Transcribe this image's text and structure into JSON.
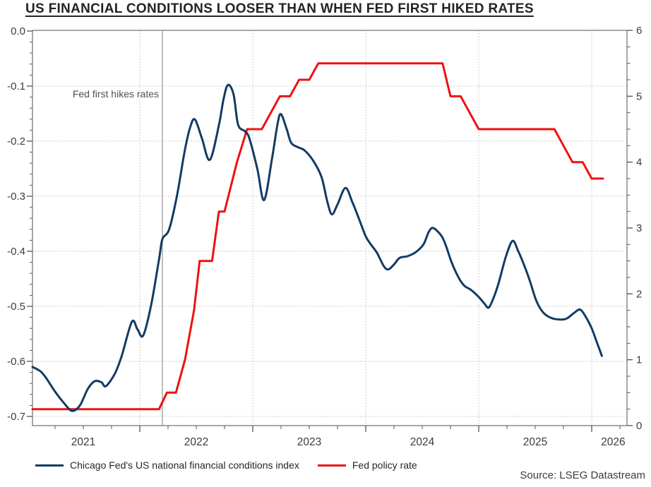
{
  "chart_data": {
    "type": "line",
    "title": "US FINANCIAL CONDITIONS LOOSER THAN WHEN FED FIRST HIKED RATES",
    "source": "Source: LSEG Datastream",
    "annotation": {
      "text": "Fed first hikes rates",
      "t": 2022.2
    },
    "x_axis": {
      "start": 2021.05,
      "end": 2026.31,
      "year_boundary_ticks": [
        2022,
        2023,
        2024,
        2025,
        2026
      ],
      "minor_tick_interval_years": 0.25,
      "labels": [
        {
          "text": "2021",
          "t": 2021.5
        },
        {
          "text": "2022",
          "t": 2022.5
        },
        {
          "text": "2023",
          "t": 2023.5
        },
        {
          "text": "2024",
          "t": 2024.5
        },
        {
          "text": "2025",
          "t": 2025.5
        },
        {
          "text": "2026",
          "t": 2026.19
        }
      ]
    },
    "left_axis": {
      "min": -0.7,
      "max": 0.0,
      "major_step": 0.1,
      "minor_step": 0.02,
      "tick_labels": [
        "0.0",
        "-0.1",
        "-0.2",
        "-0.3",
        "-0.4",
        "-0.5",
        "-0.6",
        "-0.7"
      ],
      "tick_values": [
        0,
        -0.1,
        -0.2,
        -0.3,
        -0.4,
        -0.5,
        -0.6,
        -0.7
      ],
      "gridlines": [
        -0.1,
        -0.2,
        -0.3,
        -0.4,
        -0.5,
        -0.6,
        -0.7
      ]
    },
    "right_axis": {
      "min": 0,
      "max": 6,
      "major_step": 1,
      "minor_step": 0.25,
      "tick_labels": [
        "0",
        "1",
        "2",
        "3",
        "4",
        "5",
        "6"
      ],
      "tick_values": [
        0,
        1,
        2,
        3,
        4,
        5,
        6
      ]
    },
    "grid": {
      "horizontal": true,
      "vertical_at_year_boundaries": true,
      "style": "dotted"
    },
    "colors": {
      "nfci": "#133b63",
      "fed_rate": "#ee1111",
      "grid": "#bdbdbd",
      "axis": "#6e6e6e",
      "tick": "#555555",
      "tick_label": "#3c3c3c",
      "annotation_line": "#9b9b9b",
      "annotation_text": "#4f4f4f"
    },
    "series": [
      {
        "name": "Chicago Fed's US national financial conditions index",
        "axis": "left",
        "color": "#133b63",
        "smooth": true,
        "points": [
          [
            2021.05,
            -0.61
          ],
          [
            2021.12,
            -0.618
          ],
          [
            2021.17,
            -0.63
          ],
          [
            2021.25,
            -0.655
          ],
          [
            2021.33,
            -0.676
          ],
          [
            2021.4,
            -0.69
          ],
          [
            2021.47,
            -0.68
          ],
          [
            2021.54,
            -0.65
          ],
          [
            2021.6,
            -0.636
          ],
          [
            2021.66,
            -0.638
          ],
          [
            2021.7,
            -0.645
          ],
          [
            2021.78,
            -0.622
          ],
          [
            2021.84,
            -0.59
          ],
          [
            2021.93,
            -0.528
          ],
          [
            2021.98,
            -0.542
          ],
          [
            2022.03,
            -0.553
          ],
          [
            2022.1,
            -0.498
          ],
          [
            2022.17,
            -0.415
          ],
          [
            2022.2,
            -0.378
          ],
          [
            2022.26,
            -0.36
          ],
          [
            2022.33,
            -0.298
          ],
          [
            2022.4,
            -0.215
          ],
          [
            2022.45,
            -0.172
          ],
          [
            2022.49,
            -0.161
          ],
          [
            2022.55,
            -0.195
          ],
          [
            2022.62,
            -0.234
          ],
          [
            2022.7,
            -0.171
          ],
          [
            2022.74,
            -0.125
          ],
          [
            2022.78,
            -0.098
          ],
          [
            2022.83,
            -0.115
          ],
          [
            2022.87,
            -0.17
          ],
          [
            2022.93,
            -0.182
          ],
          [
            2022.97,
            -0.195
          ],
          [
            2023.04,
            -0.25
          ],
          [
            2023.1,
            -0.307
          ],
          [
            2023.17,
            -0.232
          ],
          [
            2023.22,
            -0.168
          ],
          [
            2023.25,
            -0.151
          ],
          [
            2023.3,
            -0.178
          ],
          [
            2023.34,
            -0.203
          ],
          [
            2023.4,
            -0.211
          ],
          [
            2023.46,
            -0.217
          ],
          [
            2023.54,
            -0.237
          ],
          [
            2023.61,
            -0.266
          ],
          [
            2023.66,
            -0.31
          ],
          [
            2023.7,
            -0.333
          ],
          [
            2023.75,
            -0.315
          ],
          [
            2023.82,
            -0.285
          ],
          [
            2023.88,
            -0.31
          ],
          [
            2023.94,
            -0.341
          ],
          [
            2024.0,
            -0.373
          ],
          [
            2024.05,
            -0.389
          ],
          [
            2024.1,
            -0.403
          ],
          [
            2024.16,
            -0.427
          ],
          [
            2024.2,
            -0.433
          ],
          [
            2024.25,
            -0.424
          ],
          [
            2024.3,
            -0.412
          ],
          [
            2024.37,
            -0.409
          ],
          [
            2024.44,
            -0.402
          ],
          [
            2024.51,
            -0.388
          ],
          [
            2024.56,
            -0.364
          ],
          [
            2024.6,
            -0.358
          ],
          [
            2024.67,
            -0.372
          ],
          [
            2024.71,
            -0.39
          ],
          [
            2024.76,
            -0.42
          ],
          [
            2024.82,
            -0.447
          ],
          [
            2024.87,
            -0.462
          ],
          [
            2024.93,
            -0.47
          ],
          [
            2025.0,
            -0.483
          ],
          [
            2025.05,
            -0.495
          ],
          [
            2025.09,
            -0.502
          ],
          [
            2025.14,
            -0.48
          ],
          [
            2025.18,
            -0.455
          ],
          [
            2025.24,
            -0.41
          ],
          [
            2025.3,
            -0.381
          ],
          [
            2025.35,
            -0.4
          ],
          [
            2025.39,
            -0.419
          ],
          [
            2025.45,
            -0.452
          ],
          [
            2025.51,
            -0.49
          ],
          [
            2025.57,
            -0.511
          ],
          [
            2025.64,
            -0.521
          ],
          [
            2025.72,
            -0.524
          ],
          [
            2025.78,
            -0.522
          ],
          [
            2025.85,
            -0.511
          ],
          [
            2025.9,
            -0.506
          ],
          [
            2025.95,
            -0.52
          ],
          [
            2026.0,
            -0.54
          ],
          [
            2026.04,
            -0.562
          ],
          [
            2026.09,
            -0.59
          ]
        ]
      },
      {
        "name": "Fed policy rate",
        "axis": "right",
        "color": "#ee1111",
        "smooth": false,
        "points": [
          [
            2021.05,
            0.25
          ],
          [
            2022.17,
            0.25
          ],
          [
            2022.24,
            0.5
          ],
          [
            2022.32,
            0.5
          ],
          [
            2022.4,
            1.0
          ],
          [
            2022.48,
            1.75
          ],
          [
            2022.53,
            2.5
          ],
          [
            2022.64,
            2.5
          ],
          [
            2022.7,
            3.25
          ],
          [
            2022.75,
            3.25
          ],
          [
            2022.86,
            4.0
          ],
          [
            2022.95,
            4.5
          ],
          [
            2023.08,
            4.5
          ],
          [
            2023.16,
            4.75
          ],
          [
            2023.24,
            5.0
          ],
          [
            2023.33,
            5.0
          ],
          [
            2023.41,
            5.25
          ],
          [
            2023.5,
            5.25
          ],
          [
            2023.58,
            5.5
          ],
          [
            2024.68,
            5.5
          ],
          [
            2024.75,
            5.0
          ],
          [
            2024.84,
            5.0
          ],
          [
            2024.92,
            4.75
          ],
          [
            2025.0,
            4.5
          ],
          [
            2025.67,
            4.5
          ],
          [
            2025.75,
            4.25
          ],
          [
            2025.83,
            4.0
          ],
          [
            2025.92,
            4.0
          ],
          [
            2026.0,
            3.75
          ],
          [
            2026.1,
            3.75
          ]
        ]
      }
    ]
  }
}
